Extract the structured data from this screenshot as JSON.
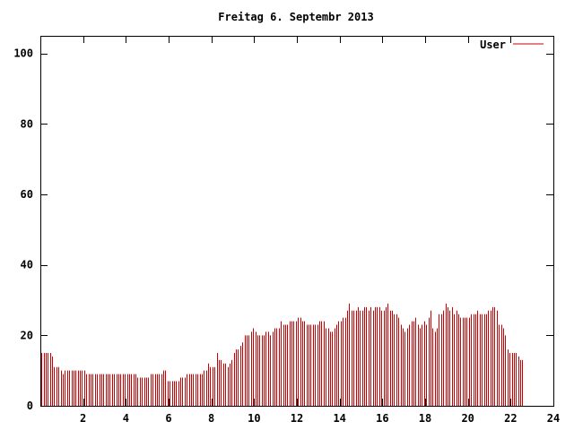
{
  "chart_data": {
    "type": "bar",
    "title": "Freitag 6. Septembr 2013",
    "xlabel": "",
    "ylabel": "",
    "xlim": [
      0,
      24
    ],
    "ylim": [
      0,
      105
    ],
    "x_ticks": [
      2,
      4,
      6,
      8,
      10,
      12,
      14,
      16,
      18,
      20,
      22,
      24
    ],
    "y_ticks": [
      0,
      20,
      40,
      60,
      80,
      100
    ],
    "grid": false,
    "legend_position": "top-right",
    "bar_color": "#cc0000",
    "series": [
      {
        "name": "User",
        "sample_interval_hours": 0.1,
        "values": [
          15,
          15,
          15,
          15,
          15,
          14,
          11,
          11,
          11,
          10,
          9,
          10,
          10,
          10,
          10,
          10,
          10,
          10,
          10,
          10,
          10,
          9,
          9,
          9,
          9,
          9,
          9,
          9,
          9,
          9,
          9,
          9,
          9,
          9,
          9,
          9,
          9,
          9,
          9,
          9,
          9,
          9,
          9,
          9,
          9,
          8,
          8,
          8,
          8,
          8,
          8,
          9,
          9,
          9,
          9,
          9,
          9,
          10,
          10,
          7,
          7,
          7,
          7,
          7,
          7,
          8,
          8,
          8,
          9,
          9,
          9,
          9,
          9,
          9,
          9,
          9,
          10,
          10,
          12,
          11,
          11,
          11,
          15,
          13,
          13,
          12,
          12,
          11,
          12,
          13,
          15,
          16,
          16,
          17,
          18,
          20,
          20,
          20,
          21,
          22,
          21,
          20,
          20,
          20,
          20,
          21,
          21,
          20,
          21,
          22,
          22,
          22,
          24,
          23,
          23,
          23,
          24,
          24,
          24,
          24,
          25,
          25,
          24,
          24,
          23,
          23,
          23,
          23,
          23,
          23,
          24,
          24,
          24,
          22,
          22,
          21,
          21,
          22,
          23,
          24,
          24,
          25,
          25,
          27,
          29,
          27,
          27,
          27,
          28,
          27,
          27,
          28,
          28,
          27,
          28,
          27,
          28,
          28,
          28,
          27,
          27,
          28,
          29,
          27,
          27,
          26,
          26,
          25,
          23,
          22,
          21,
          22,
          23,
          24,
          24,
          25,
          23,
          22,
          23,
          24,
          23,
          25,
          27,
          22,
          21,
          22,
          26,
          26,
          27,
          29,
          28,
          27,
          28,
          26,
          27,
          26,
          25,
          25,
          25,
          25,
          25,
          26,
          26,
          26,
          27,
          26,
          26,
          26,
          26,
          27,
          27,
          28,
          28,
          27,
          23,
          23,
          22,
          20,
          16,
          15,
          15,
          15,
          15,
          14,
          13,
          13
        ]
      }
    ]
  }
}
